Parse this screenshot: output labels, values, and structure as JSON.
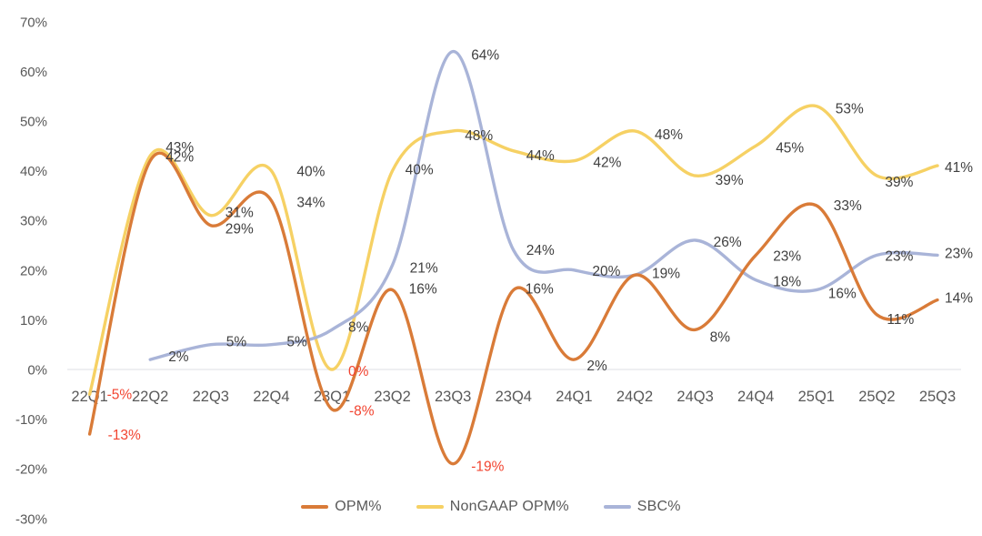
{
  "chart_data": {
    "type": "line",
    "title": "",
    "categories": [
      "22Q1",
      "22Q2",
      "22Q3",
      "22Q4",
      "23Q1",
      "23Q2",
      "23Q3",
      "23Q4",
      "24Q1",
      "24Q2",
      "24Q3",
      "24Q4",
      "25Q1",
      "25Q2",
      "25Q3"
    ],
    "series": [
      {
        "name": "NonGAAP OPM%",
        "color": "#f6d164",
        "values": [
          -5,
          43,
          31,
          40,
          0,
          40,
          48,
          44,
          42,
          48,
          39,
          45,
          53,
          39,
          41
        ],
        "labels": [
          "-5%",
          "43%",
          "31%",
          "40%",
          "0%",
          "40%",
          "48%",
          "44%",
          "42%",
          "48%",
          "39%",
          "45%",
          "53%",
          "39%",
          "41%"
        ]
      },
      {
        "name": "SBC%",
        "color": "#a9b4d8",
        "values": [
          null,
          2,
          5,
          5,
          8,
          21,
          64,
          24,
          20,
          19,
          26,
          18,
          16,
          23,
          23
        ],
        "labels": [
          null,
          "2%",
          "5%",
          "5%",
          "8%",
          "21%",
          "64%",
          "24%",
          "20%",
          null,
          "26%",
          "18%",
          "16%",
          "23%",
          "23%"
        ]
      },
      {
        "name": "OPM%",
        "color": "#d97b38",
        "values": [
          -13,
          42,
          29,
          34,
          -8,
          16,
          -19,
          16,
          2,
          19,
          8,
          23,
          33,
          11,
          14
        ],
        "labels": [
          "-13%",
          "42%",
          "29%",
          "34%",
          "-8%",
          "16%",
          "-19%",
          "16%",
          "2%",
          "19%",
          "8%",
          "23%",
          "33%",
          "11%",
          "14%"
        ]
      }
    ],
    "legend_order": [
      "OPM%",
      "NonGAAP OPM%",
      "SBC%"
    ],
    "ylim": [
      -30,
      70
    ],
    "ytick_labels": [
      "70%",
      "60%",
      "50%",
      "40%",
      "30%",
      "20%",
      "10%",
      "0%",
      "-10%",
      "-20%",
      "-30%"
    ],
    "yticks": [
      70,
      60,
      50,
      40,
      30,
      20,
      10,
      0,
      -10,
      -20,
      -30
    ],
    "grid": "zero-line-only",
    "legend_position": "bottom",
    "colors": {
      "axis_text": "#595959",
      "data_label": "#3f3f3f",
      "negative_label": "#f24430",
      "zero_line": "#dcdfe6"
    }
  }
}
